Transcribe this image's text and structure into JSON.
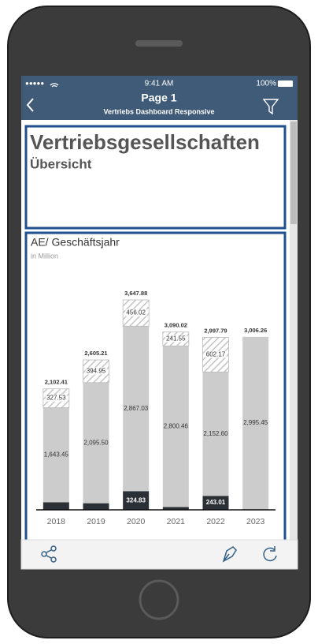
{
  "status_bar": {
    "signal": "●●●●●",
    "time": "9:41 AM",
    "battery": "100%"
  },
  "nav": {
    "title": "Page 1",
    "subtitle": "Vertriebs Dashboard Responsive"
  },
  "header_tile": {
    "title": "Vertriebsgesellschaften",
    "subtitle": "Übersicht"
  },
  "chart_data": {
    "type": "bar",
    "stacked": true,
    "title": "AE/ Geschäftsjahr",
    "subtitle": "in Million",
    "categories": [
      "2018",
      "2019",
      "2020",
      "2021",
      "2022",
      "2023"
    ],
    "series": [
      {
        "color": "#2b2f36",
        "values": [
          131.43,
          114.76,
          324.83,
          48.01,
          243.01,
          10.81
        ],
        "value_labels": [
          null,
          null,
          "324.83",
          null,
          "243.01",
          null
        ]
      },
      {
        "color": "#cccccc",
        "values": [
          1643.45,
          2095.5,
          2867.03,
          2800.46,
          2152.6,
          2995.45
        ],
        "value_labels": [
          "1,643.45",
          "2,095.50",
          "2,867.03",
          "2,800.46",
          "2,152.60",
          "2,995.45"
        ]
      },
      {
        "color": "#c8c8c8",
        "pattern": "hatched",
        "values": [
          327.53,
          394.95,
          456.02,
          241.55,
          602.17,
          null
        ],
        "value_labels": [
          "327.53",
          "394.95",
          "456.02",
          "241.55",
          "602.17",
          null
        ]
      }
    ],
    "totals": {
      "values": [
        2102.41,
        2605.21,
        3647.88,
        3090.02,
        2997.79,
        3006.26
      ],
      "value_labels": [
        "2,102.41",
        "2,605.21",
        "3,647.88",
        "3,090.02",
        "2,997.79",
        "3,006.26"
      ]
    }
  }
}
